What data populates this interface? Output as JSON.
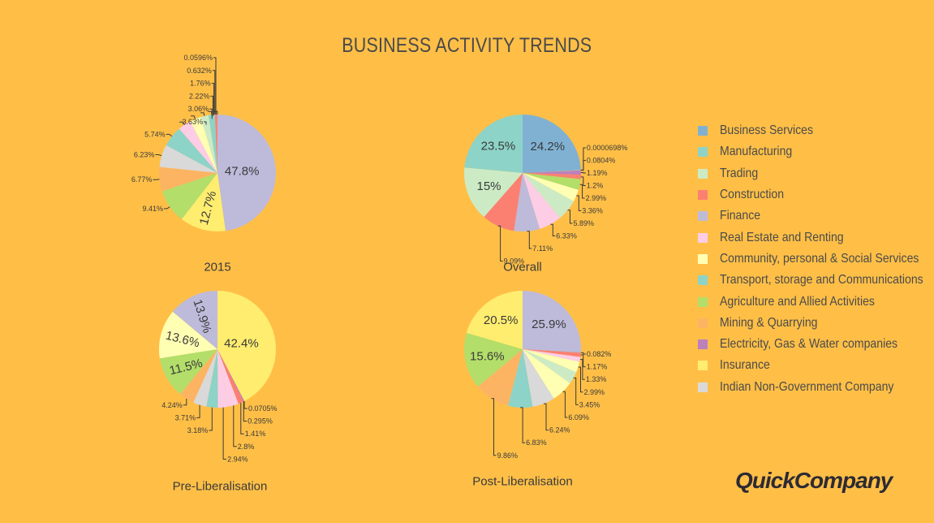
{
  "brand": "QuickCompany",
  "colors": {
    "background": "#ffbf47",
    "palette": [
      "#80b1d3",
      "#8dd3c7",
      "#ccebc5",
      "#fb8072",
      "#bebada",
      "#fccde5",
      "#ffffb3",
      "#8dd3c7",
      "#b3de69",
      "#fdb462",
      "#bc80bd",
      "#ffed6f",
      "#d9d9d9"
    ]
  },
  "chart_data": [
    {
      "type": "pie",
      "title": "BUSINESS ACTIVITY TRENDS",
      "legend_position": "right",
      "categories": [
        "Business Services",
        "Manufacturing",
        "Trading",
        "Construction",
        "Finance",
        "Real Estate and Renting",
        "Community, personal & Social Services",
        "Transport, storage and Communications",
        "Agriculture and Allied Activities",
        "Mining & Quarrying",
        "Electricity, Gas & Water companies",
        "Insurance",
        "Indian Non-Government Company"
      ]
    },
    {
      "type": "pie",
      "caption": "2015",
      "slices": [
        {
          "category": "Finance",
          "value": 47.8,
          "label": "47.8%"
        },
        {
          "category": "Insurance",
          "value": 12.7,
          "label": "12.7%"
        },
        {
          "category": "Agriculture and Allied Activities",
          "value": 9.41,
          "label": "9.41%"
        },
        {
          "category": "Mining & Quarrying",
          "value": 6.77,
          "label": "6.77%"
        },
        {
          "category": "Indian Non-Government Company",
          "value": 6.23,
          "label": "6.23%"
        },
        {
          "category": "Transport, storage and Communications",
          "value": 5.74,
          "label": "5.74%"
        },
        {
          "category": "Real Estate and Renting",
          "value": 3.63,
          "label": "3.63%"
        },
        {
          "category": "Community, personal & Social Services",
          "value": 3.06,
          "label": "3.06%"
        },
        {
          "category": "Trading",
          "value": 2.22,
          "label": "2.22%"
        },
        {
          "category": "Manufacturing",
          "value": 1.76,
          "label": "1.76%"
        },
        {
          "category": "Construction",
          "value": 0.632,
          "label": "0.632%"
        },
        {
          "category": "Electricity, Gas & Water companies",
          "value": 0.0596,
          "label": "0.0596%"
        }
      ]
    },
    {
      "type": "pie",
      "caption": "Overall",
      "slices": [
        {
          "category": "Business Services",
          "value": 24.2,
          "label": "24.2%"
        },
        {
          "category": "Electricity, Gas & Water companies",
          "value": 6.98e-05,
          "label": "0.0000698%"
        },
        {
          "category": "Insurance",
          "value": 0.0804,
          "label": "0.0804%"
        },
        {
          "category": "Electricity, Gas & Water companies",
          "value": 1.19,
          "label": "1.19%"
        },
        {
          "category": "Construction",
          "value": 1.2,
          "label": "1.2%"
        },
        {
          "category": "Agriculture and Allied Activities",
          "value": 2.99,
          "label": "2.99%"
        },
        {
          "category": "Community, personal & Social Services",
          "value": 3.36,
          "label": "3.36%"
        },
        {
          "category": "Trading",
          "value": 5.89,
          "label": "5.89%"
        },
        {
          "category": "Real Estate and Renting",
          "value": 6.33,
          "label": "6.33%"
        },
        {
          "category": "Finance",
          "value": 7.11,
          "label": "7.11%"
        },
        {
          "category": "Construction",
          "value": 9.09,
          "label": "9.09%"
        },
        {
          "category": "Trading",
          "value": 15,
          "label": "15%"
        },
        {
          "category": "Manufacturing",
          "value": 23.5,
          "label": "23.5%"
        }
      ]
    },
    {
      "type": "pie",
      "caption": "Pre-Liberalisation",
      "slices": [
        {
          "category": "Insurance",
          "value": 42.4,
          "label": "42.4%"
        },
        {
          "category": "Electricity, Gas & Water companies",
          "value": 0.0705,
          "label": "0.0705%"
        },
        {
          "category": "Electricity, Gas & Water companies",
          "value": 0.295,
          "label": "0.295%"
        },
        {
          "category": "Construction",
          "value": 1.41,
          "label": "1.41%"
        },
        {
          "category": "Real Estate and Renting",
          "value": 2.8,
          "label": "2.8%"
        },
        {
          "category": "Real Estate and Renting",
          "value": 2.94,
          "label": "2.94%"
        },
        {
          "category": "Transport, storage and Communications",
          "value": 3.18,
          "label": "3.18%"
        },
        {
          "category": "Indian Non-Government Company",
          "value": 3.71,
          "label": "3.71%"
        },
        {
          "category": "Mining & Quarrying",
          "value": 4.24,
          "label": "4.24%"
        },
        {
          "category": "Agriculture and Allied Activities",
          "value": 11.5,
          "label": "11.5%"
        },
        {
          "category": "Community, personal & Social Services",
          "value": 13.6,
          "label": "13.6%"
        },
        {
          "category": "Finance",
          "value": 13.9,
          "label": "13.9%"
        }
      ]
    },
    {
      "type": "pie",
      "caption": "Post-Liberalisation",
      "slices": [
        {
          "category": "Finance",
          "value": 25.9,
          "label": "25.9%"
        },
        {
          "category": "Business Services",
          "value": 0.082,
          "label": "0.082%"
        },
        {
          "category": "Construction",
          "value": 1.17,
          "label": "1.17%"
        },
        {
          "category": "Real Estate and Renting",
          "value": 1.33,
          "label": "1.33%"
        },
        {
          "category": "Community, personal & Social Services",
          "value": 2.99,
          "label": "2.99%"
        },
        {
          "category": "Trading",
          "value": 3.45,
          "label": "3.45%"
        },
        {
          "category": "Community, personal & Social Services",
          "value": 6.09,
          "label": "6.09%"
        },
        {
          "category": "Indian Non-Government Company",
          "value": 6.24,
          "label": "6.24%"
        },
        {
          "category": "Transport, storage and Communications",
          "value": 6.83,
          "label": "6.83%"
        },
        {
          "category": "Mining & Quarrying",
          "value": 9.86,
          "label": "9.86%"
        },
        {
          "category": "Agriculture and Allied Activities",
          "value": 15.6,
          "label": "15.6%"
        },
        {
          "category": "Insurance",
          "value": 20.5,
          "label": "20.5%"
        }
      ]
    }
  ]
}
